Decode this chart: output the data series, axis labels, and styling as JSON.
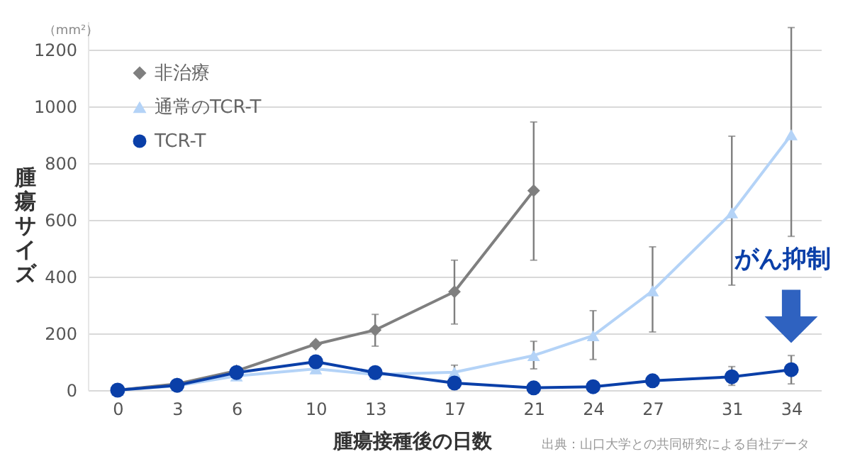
{
  "chart_data": {
    "type": "line",
    "xlabel": "腫瘍接種後の日数",
    "ylabel": "腫瘍サイズ",
    "annotations": [
      "（mm²）",
      "がん抑制",
      "出典：山口大学との共同研究による自社データ"
    ],
    "x": [
      0,
      3,
      6,
      10,
      13,
      17,
      21,
      24,
      27,
      31,
      34
    ],
    "series": [
      {
        "name": "非治療",
        "color": "#7f7f7f",
        "marker": "diamond",
        "x": [
          0,
          3,
          6,
          10,
          13,
          17,
          21
        ],
        "values": [
          0,
          22,
          68,
          162,
          212,
          347,
          703
        ],
        "errors": [
          null,
          null,
          null,
          null,
          [
            155,
            267
          ],
          [
            233,
            458
          ],
          [
            458,
            945
          ]
        ]
      },
      {
        "name": "通常のTCR-T",
        "color": "#b4d3f7",
        "marker": "triangle",
        "values": [
          0,
          15,
          50,
          75,
          55,
          63,
          122,
          192,
          350,
          625,
          900
        ],
        "errors": [
          null,
          null,
          null,
          null,
          null,
          [
            40,
            88
          ],
          [
            75,
            172
          ],
          [
            108,
            280
          ],
          [
            205,
            505
          ],
          [
            370,
            895
          ],
          [
            542,
            1278
          ]
        ]
      },
      {
        "name": "TCR-T",
        "color": "#0a3fa8",
        "marker": "circle",
        "values": [
          0,
          17,
          62,
          100,
          62,
          25,
          8,
          12,
          33,
          47,
          72
        ],
        "errors": [
          null,
          null,
          null,
          null,
          null,
          null,
          null,
          null,
          null,
          [
            17,
            83
          ],
          [
            22,
            122
          ]
        ]
      }
    ],
    "xlim": [
      -1.5,
      35.5
    ],
    "xticks": [
      0,
      3,
      6,
      10,
      13,
      17,
      21,
      24,
      27,
      31,
      34
    ],
    "ylim": [
      0,
      1300
    ],
    "yticks": [
      0,
      200,
      400,
      600,
      800,
      1000,
      1200
    ],
    "grid": "y",
    "legend": "top left",
    "line_style": "solid"
  }
}
